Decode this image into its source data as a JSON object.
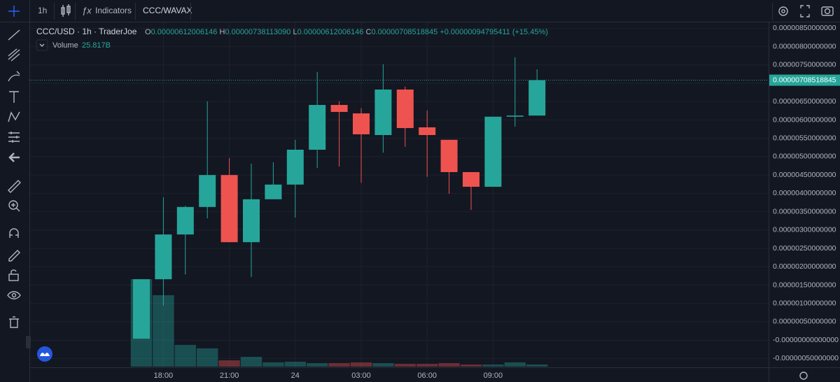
{
  "toolbar": {
    "interval": "1h",
    "indicators": "Indicators",
    "symbol": "CCC/WAVAX"
  },
  "chart_data": {
    "type": "candlestick",
    "title": "CCC/USD · 1h · TraderJoe",
    "legend": {
      "prefixes": [
        "O",
        "H",
        "L",
        "C"
      ],
      "values": [
        "0.00000612006146",
        "0.00000738113090",
        "0.00000612006146",
        "0.00000708518845"
      ],
      "change": "+0.00000094795411",
      "change_pct": "(+15.45%)"
    },
    "last_price_label": "0.00000708518845",
    "categories": [
      null,
      "18:00",
      null,
      null,
      "21:00",
      null,
      null,
      "24",
      null,
      null,
      "03:00",
      null,
      null,
      "06:00",
      null,
      null,
      "09:00",
      null,
      null
    ],
    "open": [
      4e-08,
      1.66e-06,
      2.88e-06,
      3.63e-06,
      4.5e-06,
      2.67e-06,
      3.84e-06,
      4.24e-06,
      5.19e-06,
      6.41e-06,
      6.18e-06,
      5.59e-06,
      6.83e-06,
      5.8e-06,
      5.46e-06,
      4.58e-06,
      4.18e-06,
      6.09e-06,
      6.12006146e-06
    ],
    "high": [
      1.66e-06,
      3.89e-06,
      3.66e-06,
      6.51e-06,
      4.96e-06,
      4.81e-06,
      4.85e-06,
      5.46e-06,
      7.31e-06,
      6.51e-06,
      6.32e-06,
      7.52e-06,
      6.91e-06,
      6.26e-06,
      5.46e-06,
      4.58e-06,
      6.09e-06,
      7.71e-06,
      7.3811309e-06
    ],
    "low": [
      4e-08,
      9.4e-07,
      1.79e-06,
      3.32e-06,
      2.67e-06,
      1.72e-06,
      3.84e-06,
      3.34e-06,
      4.69e-06,
      4.73e-06,
      4.29e-06,
      5.11e-06,
      5.27e-06,
      4.45e-06,
      3.99e-06,
      3.55e-06,
      4.18e-06,
      5.82e-06,
      6.12006146e-06
    ],
    "close": [
      1.66e-06,
      2.88e-06,
      3.63e-06,
      4.5e-06,
      2.67e-06,
      3.84e-06,
      4.24e-06,
      5.19e-06,
      6.41e-06,
      6.22e-06,
      5.61e-06,
      6.83e-06,
      5.78e-06,
      5.59e-06,
      4.58e-06,
      4.18e-06,
      6.09e-06,
      6.12e-06,
      7.08518845e-06
    ],
    "up_color": "#26a69a",
    "down_color": "#ef5350",
    "volume": {
      "name": "Volume",
      "values": [
        1075,
        878,
        267,
        224,
        77,
        120,
        52,
        60,
        43,
        43,
        52,
        43,
        34,
        34,
        43,
        26,
        26,
        52,
        25.817
      ],
      "last_label": "25.817B"
    },
    "ylim": [
      -7.4e-07,
      8.66e-06
    ],
    "yticks": [
      {
        "value": 8.5e-06,
        "label": "0.00000850000000"
      },
      {
        "value": 8e-06,
        "label": "0.00000800000000"
      },
      {
        "value": 7.5e-06,
        "label": "0.00000750000000"
      },
      {
        "value": 7e-06,
        "label": "0.00000700000000"
      },
      {
        "value": 6.5e-06,
        "label": "0.00000650000000"
      },
      {
        "value": 6e-06,
        "label": "0.00000600000000"
      },
      {
        "value": 5.5e-06,
        "label": "0.00000550000000"
      },
      {
        "value": 5e-06,
        "label": "0.00000500000000"
      },
      {
        "value": 4.5e-06,
        "label": "0.00000450000000"
      },
      {
        "value": 4e-06,
        "label": "0.00000400000000"
      },
      {
        "value": 3.5e-06,
        "label": "0.00000350000000"
      },
      {
        "value": 3e-06,
        "label": "0.00000300000000"
      },
      {
        "value": 2.5e-06,
        "label": "0.00000250000000"
      },
      {
        "value": 2e-06,
        "label": "0.00000200000000"
      },
      {
        "value": 1.5e-06,
        "label": "0.00000150000000"
      },
      {
        "value": 1e-06,
        "label": "0.00000100000000"
      },
      {
        "value": 5e-07,
        "label": "0.00000050000000"
      },
      {
        "value": 0,
        "label": "-0.00000000000000"
      },
      {
        "value": -5e-07,
        "label": "-0.00000050000000"
      }
    ],
    "grid": true
  }
}
